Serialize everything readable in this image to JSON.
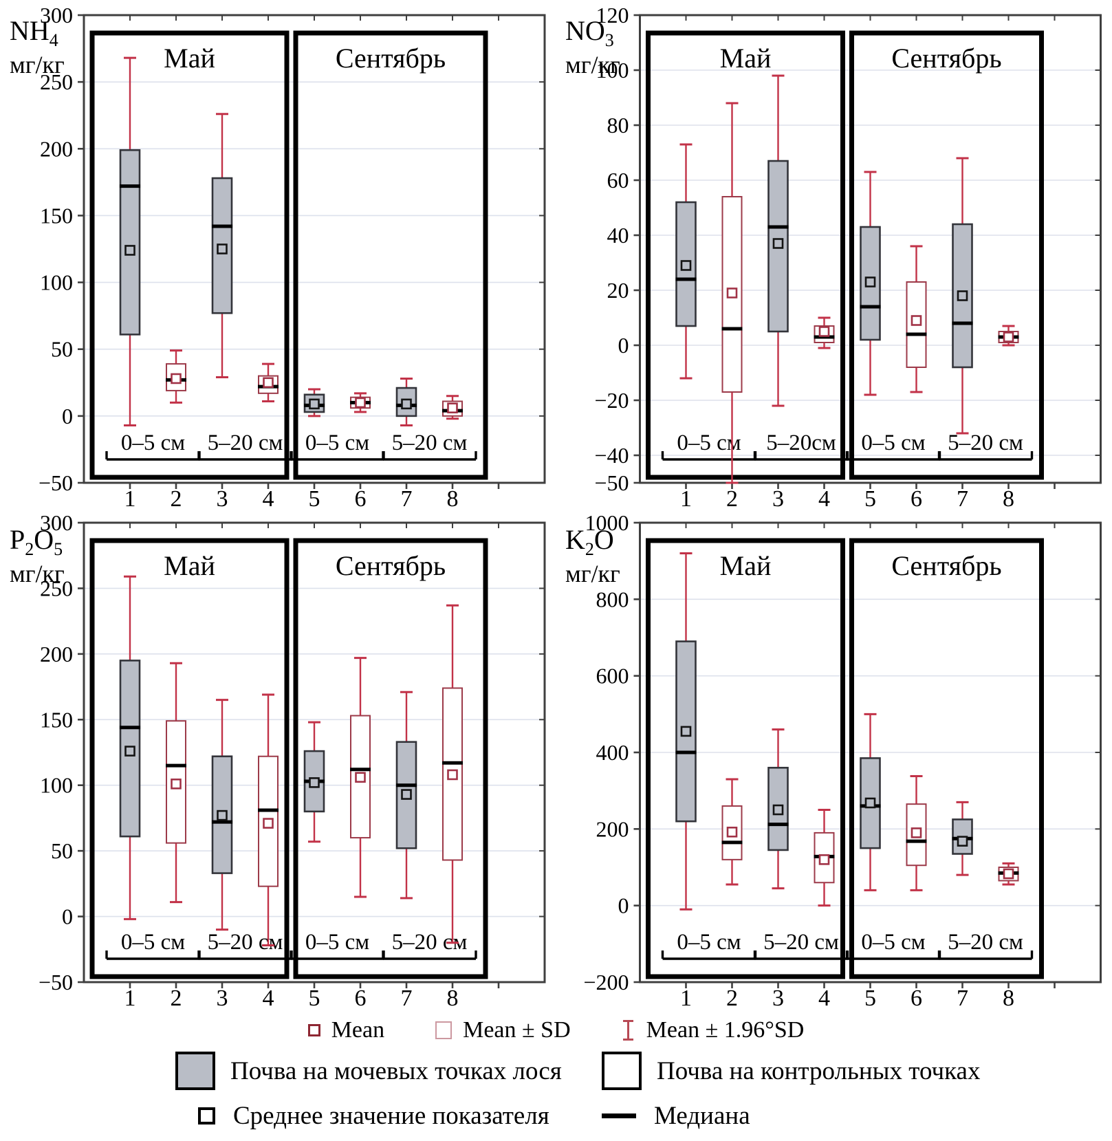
{
  "page": {
    "background": "#ffffff"
  },
  "colors": {
    "moose_fill": "#b9bdc6",
    "moose_stroke": "#33343a",
    "control_fill": "#ffffff",
    "control_stroke": "#9c3a49",
    "whisker": "#c23248",
    "mean_dark": "#141414",
    "mean_red": "#a13246",
    "grid": "#dde1ec",
    "axis": "#3f3f3f",
    "frame": "#000000"
  },
  "legend": {
    "stats": [
      {
        "icon": "mean-square-icon",
        "label": "Mean"
      },
      {
        "icon": "mean-sd-square-icon",
        "label": "Mean ± SD"
      },
      {
        "icon": "whisker-icon",
        "label": "Mean ± 1.96°SD"
      }
    ],
    "series": [
      {
        "swatch": "moose",
        "label": "Почва на мочевых точках лося"
      },
      {
        "swatch": "control",
        "label": "Почва на контрольных точках"
      }
    ],
    "markers": [
      {
        "icon": "mean-marker-icon",
        "label": "Среднее значение показателя"
      },
      {
        "icon": "median-line-icon",
        "label": "Медиана"
      }
    ]
  },
  "chart_data": [
    {
      "type": "box",
      "id": "nh4",
      "label_text": "NH4",
      "label_segments": [
        {
          "t": "NH"
        },
        {
          "t": "4",
          "sub": true
        }
      ],
      "unit": "мг/кг",
      "ylim": [
        -50,
        300
      ],
      "yticks": [
        300,
        250,
        200,
        150,
        100,
        50,
        0,
        -50
      ],
      "months": [
        "Май",
        "Сентябрь"
      ],
      "categories": [
        1,
        2,
        3,
        4,
        5,
        6,
        7,
        8
      ],
      "depth_groups": [
        {
          "label": "0–5 см",
          "cats": [
            1,
            2
          ]
        },
        {
          "label": "5–20 см",
          "cats": [
            3,
            4
          ]
        },
        {
          "label": "0–5 см",
          "cats": [
            5,
            6
          ]
        },
        {
          "label": "5–20 см",
          "cats": [
            7,
            8
          ]
        }
      ],
      "boxes": [
        {
          "cat": 1,
          "series": "moose",
          "lo": -7,
          "q1": 61,
          "median": 172,
          "q3": 199,
          "mean": 124,
          "hi": 268
        },
        {
          "cat": 2,
          "series": "control",
          "lo": 10,
          "q1": 19,
          "median": 27,
          "q3": 39,
          "mean": 28,
          "hi": 49
        },
        {
          "cat": 3,
          "series": "moose",
          "lo": 29,
          "q1": 77,
          "median": 142,
          "q3": 178,
          "mean": 125,
          "hi": 226
        },
        {
          "cat": 4,
          "series": "control",
          "lo": 11,
          "q1": 17,
          "median": 22,
          "q3": 30,
          "mean": 25,
          "hi": 39
        },
        {
          "cat": 5,
          "series": "moose",
          "lo": 0,
          "q1": 3,
          "median": 8,
          "q3": 16,
          "mean": 9,
          "hi": 20
        },
        {
          "cat": 6,
          "series": "control",
          "lo": 3,
          "q1": 6,
          "median": 10,
          "q3": 14,
          "mean": 10,
          "hi": 17
        },
        {
          "cat": 7,
          "series": "moose",
          "lo": -7,
          "q1": 0,
          "median": 8,
          "q3": 21,
          "mean": 9,
          "hi": 28
        },
        {
          "cat": 8,
          "series": "control",
          "lo": -2,
          "q1": 0,
          "median": 4,
          "q3": 11,
          "mean": 6,
          "hi": 15
        }
      ]
    },
    {
      "type": "box",
      "id": "no3",
      "label_text": "NO3",
      "label_segments": [
        {
          "t": "NO"
        },
        {
          "t": "3",
          "sub": true
        }
      ],
      "unit": "мг/кг",
      "ylim": [
        -50,
        120
      ],
      "yticks": [
        120,
        100,
        80,
        60,
        40,
        20,
        0,
        -20,
        -40,
        -50
      ],
      "months": [
        "Май",
        "Сентябрь"
      ],
      "categories": [
        1,
        2,
        3,
        4,
        5,
        6,
        7,
        8
      ],
      "depth_groups": [
        {
          "label": "0–5 см",
          "cats": [
            1,
            2
          ]
        },
        {
          "label": "5–20см",
          "cats": [
            3,
            4
          ]
        },
        {
          "label": "0–5 см",
          "cats": [
            5,
            6
          ]
        },
        {
          "label": "5–20 см",
          "cats": [
            7,
            8
          ]
        }
      ],
      "boxes": [
        {
          "cat": 1,
          "series": "moose",
          "lo": -12,
          "q1": 7,
          "median": 24,
          "q3": 52,
          "mean": 29,
          "hi": 73
        },
        {
          "cat": 2,
          "series": "control",
          "lo": -50,
          "q1": -17,
          "median": 6,
          "q3": 54,
          "mean": 19,
          "hi": 88
        },
        {
          "cat": 3,
          "series": "moose",
          "lo": -22,
          "q1": 5,
          "median": 43,
          "q3": 67,
          "mean": 37,
          "hi": 98
        },
        {
          "cat": 4,
          "series": "control",
          "lo": -1,
          "q1": 1,
          "median": 3,
          "q3": 7,
          "mean": 5,
          "hi": 10
        },
        {
          "cat": 5,
          "series": "moose",
          "lo": -18,
          "q1": 2,
          "median": 14,
          "q3": 43,
          "mean": 23,
          "hi": 63
        },
        {
          "cat": 6,
          "series": "control",
          "lo": -17,
          "q1": -8,
          "median": 4,
          "q3": 23,
          "mean": 9,
          "hi": 36
        },
        {
          "cat": 7,
          "series": "moose",
          "lo": -32,
          "q1": -8,
          "median": 8,
          "q3": 44,
          "mean": 18,
          "hi": 68
        },
        {
          "cat": 8,
          "series": "control",
          "lo": 0,
          "q1": 1,
          "median": 3,
          "q3": 5,
          "mean": 3,
          "hi": 7
        }
      ]
    },
    {
      "type": "box",
      "id": "p2o5",
      "label_text": "P2O5",
      "label_segments": [
        {
          "t": "P"
        },
        {
          "t": "2",
          "sub": true
        },
        {
          "t": "O"
        },
        {
          "t": "5",
          "sub": true
        }
      ],
      "unit": "мг/кг",
      "ylim": [
        -50,
        300
      ],
      "yticks": [
        300,
        250,
        200,
        150,
        100,
        50,
        0,
        -50
      ],
      "months": [
        "Май",
        "Сентябрь"
      ],
      "categories": [
        1,
        2,
        3,
        4,
        5,
        6,
        7,
        8
      ],
      "depth_groups": [
        {
          "label": "0–5 см",
          "cats": [
            1,
            2
          ]
        },
        {
          "label": "5–20 см",
          "cats": [
            3,
            4
          ]
        },
        {
          "label": "0–5 см",
          "cats": [
            5,
            6
          ]
        },
        {
          "label": "5–20 см",
          "cats": [
            7,
            8
          ]
        }
      ],
      "boxes": [
        {
          "cat": 1,
          "series": "moose",
          "lo": -2,
          "q1": 61,
          "median": 144,
          "q3": 195,
          "mean": 126,
          "hi": 259
        },
        {
          "cat": 2,
          "series": "control",
          "lo": 11,
          "q1": 56,
          "median": 115,
          "q3": 149,
          "mean": 101,
          "hi": 193
        },
        {
          "cat": 3,
          "series": "moose",
          "lo": -10,
          "q1": 33,
          "median": 72,
          "q3": 122,
          "mean": 77,
          "hi": 165
        },
        {
          "cat": 4,
          "series": "control",
          "lo": -22,
          "q1": 23,
          "median": 81,
          "q3": 122,
          "mean": 71,
          "hi": 169
        },
        {
          "cat": 5,
          "series": "moose",
          "lo": 57,
          "q1": 80,
          "median": 103,
          "q3": 126,
          "mean": 102,
          "hi": 148
        },
        {
          "cat": 6,
          "series": "control",
          "lo": 15,
          "q1": 60,
          "median": 112,
          "q3": 153,
          "mean": 106,
          "hi": 197
        },
        {
          "cat": 7,
          "series": "moose",
          "lo": 14,
          "q1": 52,
          "median": 100,
          "q3": 133,
          "mean": 93,
          "hi": 171
        },
        {
          "cat": 8,
          "series": "control",
          "lo": -20,
          "q1": 43,
          "median": 117,
          "q3": 174,
          "mean": 108,
          "hi": 237
        }
      ]
    },
    {
      "type": "box",
      "id": "k2o",
      "label_text": "K2O",
      "label_segments": [
        {
          "t": "K"
        },
        {
          "t": "2",
          "sub": true
        },
        {
          "t": "O"
        }
      ],
      "unit": "мг/кг",
      "ylim": [
        -200,
        1000
      ],
      "yticks": [
        1000,
        800,
        600,
        400,
        200,
        0,
        -200
      ],
      "months": [
        "Май",
        "Сентябрь"
      ],
      "categories": [
        1,
        2,
        3,
        4,
        5,
        6,
        7,
        8
      ],
      "depth_groups": [
        {
          "label": "0–5 см",
          "cats": [
            1,
            2
          ]
        },
        {
          "label": "5–20 см",
          "cats": [
            3,
            4
          ]
        },
        {
          "label": "0–5 см",
          "cats": [
            5,
            6
          ]
        },
        {
          "label": "5–20 см",
          "cats": [
            7,
            8
          ]
        }
      ],
      "boxes": [
        {
          "cat": 1,
          "series": "moose",
          "lo": -10,
          "q1": 220,
          "median": 400,
          "q3": 690,
          "mean": 455,
          "hi": 920
        },
        {
          "cat": 2,
          "series": "control",
          "lo": 55,
          "q1": 120,
          "median": 165,
          "q3": 260,
          "mean": 192,
          "hi": 330
        },
        {
          "cat": 3,
          "series": "moose",
          "lo": 45,
          "q1": 145,
          "median": 212,
          "q3": 360,
          "mean": 250,
          "hi": 460
        },
        {
          "cat": 4,
          "series": "control",
          "lo": 0,
          "q1": 60,
          "median": 128,
          "q3": 190,
          "mean": 120,
          "hi": 250
        },
        {
          "cat": 5,
          "series": "moose",
          "lo": 40,
          "q1": 150,
          "median": 260,
          "q3": 385,
          "mean": 268,
          "hi": 500
        },
        {
          "cat": 6,
          "series": "control",
          "lo": 40,
          "q1": 105,
          "median": 168,
          "q3": 265,
          "mean": 190,
          "hi": 338
        },
        {
          "cat": 7,
          "series": "moose",
          "lo": 80,
          "q1": 135,
          "median": 175,
          "q3": 225,
          "mean": 168,
          "hi": 270
        },
        {
          "cat": 8,
          "series": "control",
          "lo": 55,
          "q1": 65,
          "median": 85,
          "q3": 100,
          "mean": 83,
          "hi": 110
        }
      ]
    }
  ]
}
